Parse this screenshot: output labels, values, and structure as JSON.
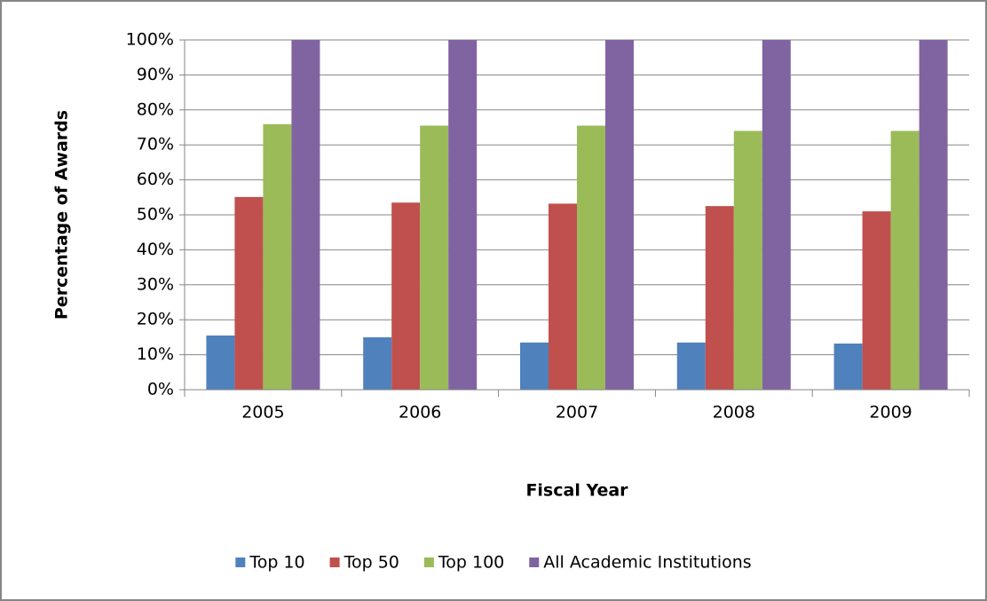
{
  "chart_data": {
    "type": "bar",
    "x_label": "Fiscal Year",
    "y_label": "Percentage of Awards",
    "categories": [
      "2005",
      "2006",
      "2007",
      "2008",
      "2009"
    ],
    "series": [
      {
        "name": "Top 10",
        "color": "#4f81bd",
        "values": [
          15.5,
          15,
          13.5,
          13.5,
          13.2
        ]
      },
      {
        "name": "Top 50",
        "color": "#c0504d",
        "values": [
          55.1,
          53.5,
          53.2,
          52.5,
          51
        ]
      },
      {
        "name": "Top 100",
        "color": "#9bbb59",
        "values": [
          75.9,
          75.5,
          75.5,
          74,
          74
        ]
      },
      {
        "name": "All Academic Institutions",
        "color": "#8064a2",
        "values": [
          100,
          100,
          100,
          100,
          100
        ]
      }
    ],
    "ylim": [
      0,
      100
    ],
    "yticks": [
      {
        "value": 0,
        "label": "0%"
      },
      {
        "value": 10,
        "label": "10%"
      },
      {
        "value": 20,
        "label": "20%"
      },
      {
        "value": 30,
        "label": "30%"
      },
      {
        "value": 40,
        "label": "40%"
      },
      {
        "value": 50,
        "label": "50%"
      },
      {
        "value": 60,
        "label": "60%"
      },
      {
        "value": 70,
        "label": "70%"
      },
      {
        "value": 80,
        "label": "80%"
      },
      {
        "value": 90,
        "label": "90%"
      },
      {
        "value": 100,
        "label": "100%"
      }
    ],
    "grid": true,
    "legend": "bottom"
  }
}
